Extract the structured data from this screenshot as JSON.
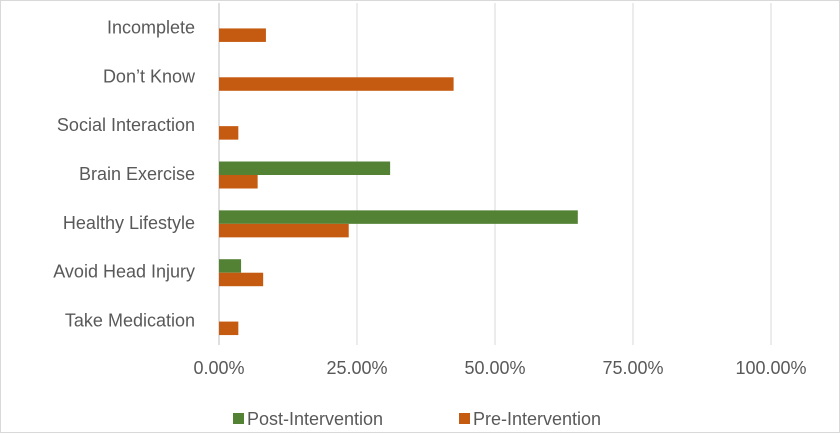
{
  "chart_data": {
    "type": "bar",
    "orientation": "horizontal",
    "categories": [
      "Incomplete",
      "Don’t Know",
      "Social Interaction",
      "Brain Exercise",
      "Healthy Lifestyle",
      "Avoid Head Injury",
      "Take Medication"
    ],
    "series": [
      {
        "name": "Post-Intervention",
        "color": "#548235",
        "values": [
          0,
          0,
          0,
          31,
          65,
          4,
          0
        ]
      },
      {
        "name": "Pre-Intervention",
        "color": "#c55a11",
        "values": [
          8.5,
          42.5,
          3.5,
          7,
          23.5,
          8,
          3.5
        ]
      }
    ],
    "xlim": [
      0,
      100
    ],
    "xticks": [
      0,
      25,
      50,
      75,
      100
    ],
    "xtick_labels": [
      "0.00%",
      "25.00%",
      "50.00%",
      "75.00%",
      "100.00%"
    ],
    "grid": "vertical",
    "legend": "bottom"
  }
}
